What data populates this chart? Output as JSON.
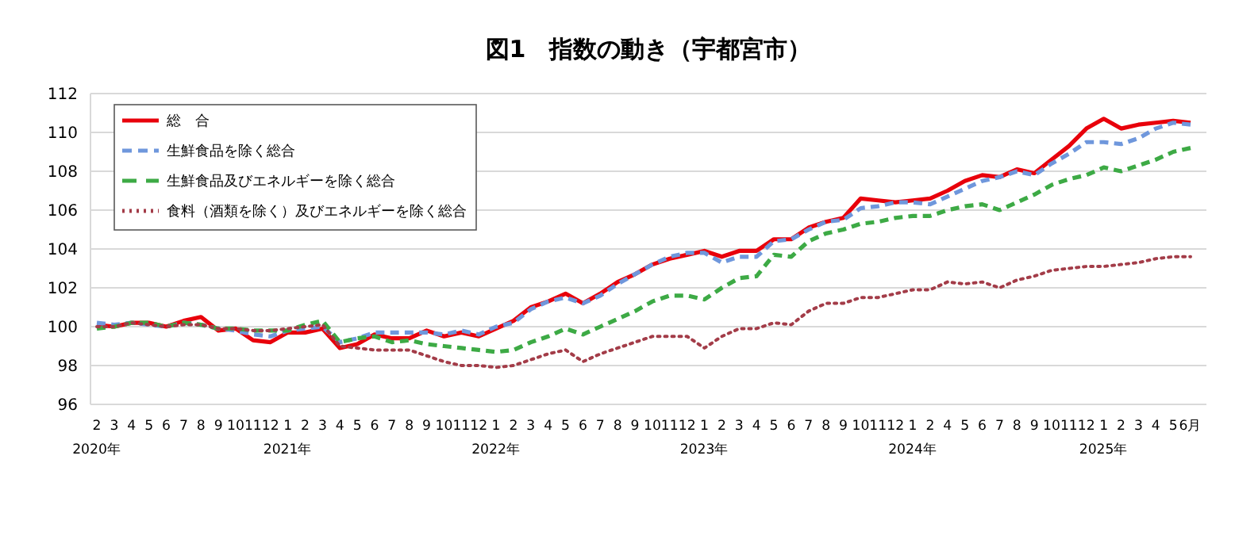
{
  "chart_data": {
    "type": "line",
    "title": "図1　指数の動き（宇都宮市）",
    "categories": [
      "2\n2020年",
      "3",
      "4",
      "5",
      "6",
      "7",
      "8",
      "9",
      "10",
      "11",
      "12",
      "1\n2021年",
      "2",
      "3",
      "4",
      "5",
      "6",
      "7",
      "8",
      "9",
      "10",
      "11",
      "12",
      "1\n2022年",
      "2",
      "3",
      "4",
      "5",
      "6",
      "7",
      "8",
      "9",
      "10",
      "11",
      "12",
      "1\n2023年",
      "2",
      "3",
      "4",
      "5",
      "6",
      "7",
      "8",
      "9",
      "10",
      "11",
      "12",
      "1\n2024年",
      "2",
      "4",
      "5",
      "6",
      "7",
      "8",
      "9",
      "10",
      "11",
      "12",
      "1\n2025年",
      "2",
      "3",
      "4",
      "5",
      "6月"
    ],
    "ylim": [
      96,
      112
    ],
    "yticks": [
      96,
      98,
      100,
      102,
      104,
      106,
      108,
      110,
      112
    ],
    "grid": "y",
    "legend": "top left",
    "series": [
      {
        "name": "総　合",
        "color": "#e8000b",
        "line_style": "solid",
        "values": [
          100.1,
          100.0,
          100.2,
          100.2,
          100.0,
          100.3,
          100.5,
          99.8,
          99.9,
          99.3,
          99.2,
          99.7,
          99.7,
          99.9,
          98.9,
          99.1,
          99.6,
          99.4,
          99.4,
          99.8,
          99.5,
          99.7,
          99.5,
          99.9,
          100.3,
          101.0,
          101.3,
          101.7,
          101.2,
          101.7,
          102.3,
          102.7,
          103.2,
          103.5,
          103.7,
          103.9,
          103.6,
          103.9,
          103.9,
          104.5,
          104.5,
          105.1,
          105.4,
          105.6,
          106.6,
          106.5,
          106.4,
          106.5,
          106.6,
          107.0,
          107.5,
          107.8,
          107.7,
          108.1,
          107.9,
          108.6,
          109.3,
          110.2,
          110.7,
          110.2,
          110.4,
          110.5,
          110.6,
          110.5
        ]
      },
      {
        "name": "生鮮食品を除く総合",
        "color": "#6f97dc",
        "line_style": "dashed",
        "values": [
          100.2,
          100.1,
          100.2,
          100.1,
          100.0,
          100.2,
          100.1,
          99.9,
          99.8,
          99.6,
          99.5,
          99.8,
          99.9,
          100.0,
          99.2,
          99.4,
          99.7,
          99.7,
          99.7,
          99.7,
          99.6,
          99.8,
          99.6,
          100.0,
          100.2,
          100.9,
          101.3,
          101.5,
          101.2,
          101.6,
          102.2,
          102.7,
          103.2,
          103.6,
          103.8,
          103.8,
          103.3,
          103.6,
          103.6,
          104.4,
          104.5,
          105.0,
          105.4,
          105.5,
          106.1,
          106.2,
          106.4,
          106.4,
          106.3,
          106.7,
          107.1,
          107.5,
          107.7,
          108.0,
          107.8,
          108.4,
          108.9,
          109.5,
          109.5,
          109.4,
          109.7,
          110.2,
          110.5,
          110.4
        ]
      },
      {
        "name": "生鮮食品及びエネルギーを除く総合",
        "color": "#3daa45",
        "line_style": "dashed",
        "values": [
          99.9,
          100.0,
          100.2,
          100.2,
          100.0,
          100.2,
          100.1,
          99.9,
          99.9,
          99.8,
          99.8,
          99.8,
          100.1,
          100.3,
          99.2,
          99.4,
          99.5,
          99.2,
          99.3,
          99.1,
          99.0,
          98.9,
          98.8,
          98.7,
          98.8,
          99.2,
          99.5,
          99.9,
          99.6,
          100.0,
          100.4,
          100.8,
          101.3,
          101.6,
          101.6,
          101.4,
          102.0,
          102.5,
          102.6,
          103.7,
          103.6,
          104.4,
          104.8,
          105.0,
          105.3,
          105.4,
          105.6,
          105.7,
          105.7,
          106.0,
          106.2,
          106.3,
          106.0,
          106.4,
          106.8,
          107.3,
          107.6,
          107.8,
          108.2,
          108.0,
          108.3,
          108.6,
          109.0,
          109.2
        ]
      },
      {
        "name": "食料（酒類を除く）及びエネルギーを除く総合",
        "color": "#a33c48",
        "line_style": "dotted",
        "values": [
          100.0,
          100.0,
          100.2,
          100.1,
          100.0,
          100.1,
          100.1,
          99.9,
          99.9,
          99.8,
          99.8,
          99.9,
          100.0,
          100.1,
          99.0,
          98.9,
          98.8,
          98.8,
          98.8,
          98.5,
          98.2,
          98.0,
          98.0,
          97.9,
          98.0,
          98.3,
          98.6,
          98.8,
          98.2,
          98.6,
          98.9,
          99.2,
          99.5,
          99.5,
          99.5,
          98.9,
          99.5,
          99.9,
          99.9,
          100.2,
          100.1,
          100.8,
          101.2,
          101.2,
          101.5,
          101.5,
          101.7,
          101.9,
          101.9,
          102.3,
          102.2,
          102.3,
          102.0,
          102.4,
          102.6,
          102.9,
          103.0,
          103.1,
          103.1,
          103.2,
          103.3,
          103.5,
          103.6,
          103.6
        ]
      }
    ]
  }
}
